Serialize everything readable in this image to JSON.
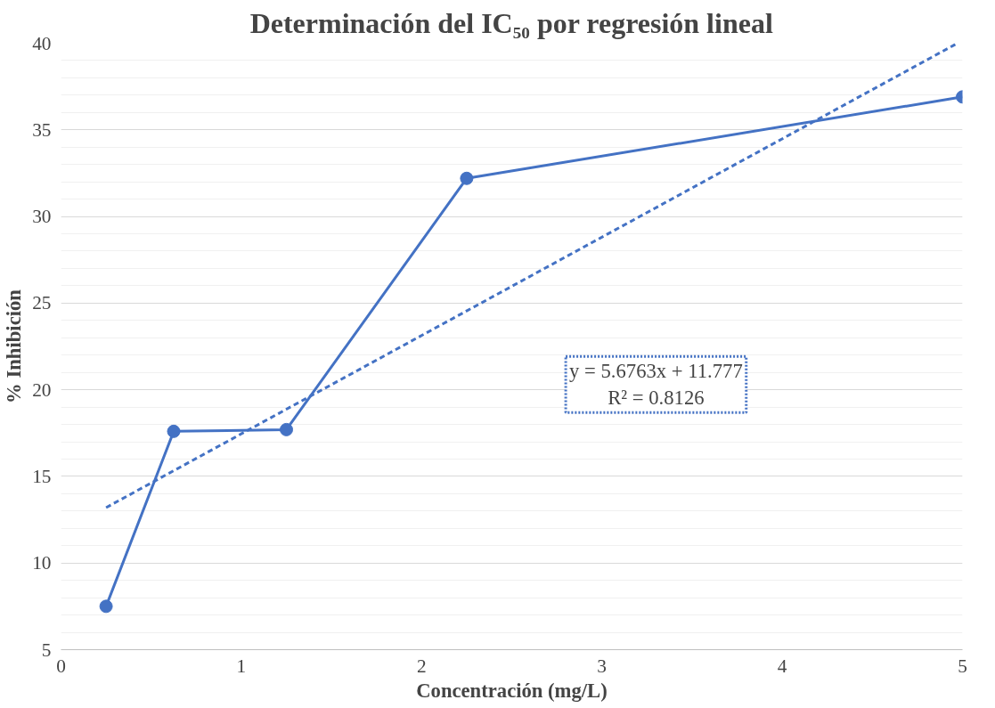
{
  "chart_data": {
    "type": "line",
    "title": "Determinación del IC₅₀ por regresión lineal",
    "xlabel": "Concentración (mg/L)",
    "ylabel": "% Inhibición",
    "x": [
      0.25,
      0.625,
      1.25,
      2.25,
      5
    ],
    "series": [
      {
        "color": "#4472c4",
        "values": [
          7.5,
          17.6,
          17.7,
          32.2,
          36.9
        ],
        "marker": "circle",
        "line_style": "solid"
      },
      {
        "type": "line",
        "color": "#4472c4",
        "x": [
          0.25,
          4.96
        ],
        "values": [
          13.2,
          39.93
        ],
        "marker": "none",
        "line_style": "dashed"
      }
    ],
    "xlim": [
      0,
      5
    ],
    "xticks": [
      0,
      1,
      2,
      3,
      4,
      5
    ],
    "ylim": [
      5,
      40
    ],
    "yticks": [
      5,
      10,
      15,
      20,
      25,
      30,
      35,
      40
    ],
    "grid": "y",
    "annotations": [
      "y = 5.6763x + 11.777",
      "R² = 0.8126"
    ]
  }
}
